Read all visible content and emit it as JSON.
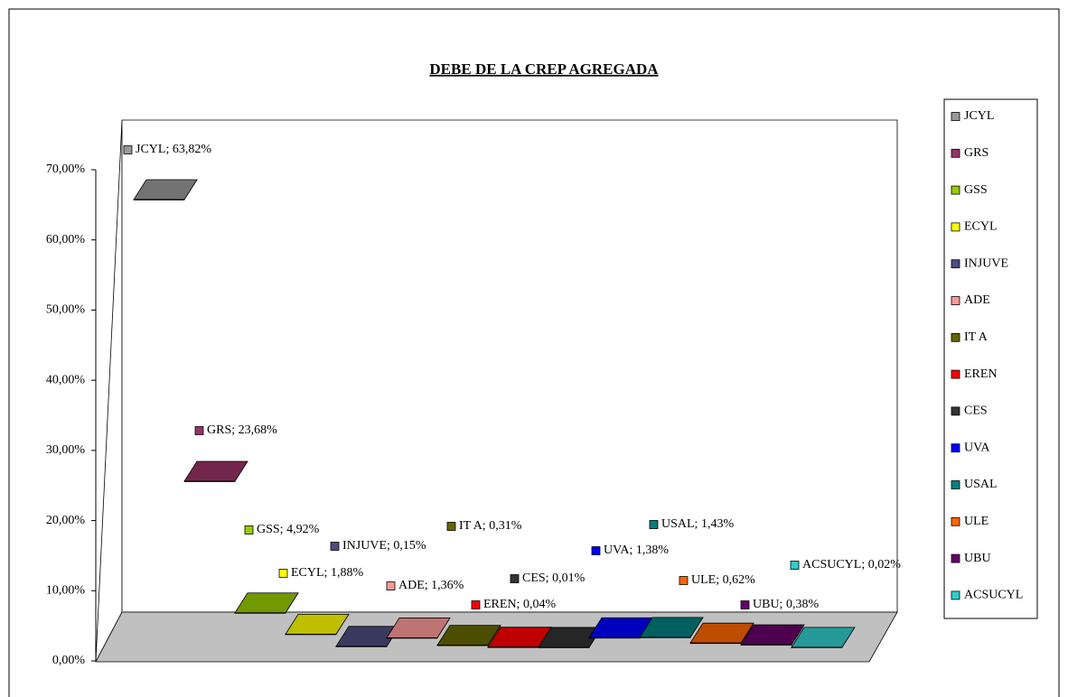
{
  "chart_data": {
    "type": "bar3d",
    "title": "DEBE DE LA CREP AGREGADA",
    "categories": [
      "JCYL",
      "GRS",
      "GSS",
      "ECYL",
      "INJUVE",
      "ADE",
      "IT A",
      "EREN",
      "CES",
      "UVA",
      "USAL",
      "ULE",
      "UBU",
      "ACSUCYL"
    ],
    "values": [
      63.82,
      23.68,
      4.92,
      1.88,
      0.15,
      1.36,
      0.31,
      0.04,
      0.01,
      1.38,
      1.43,
      0.62,
      0.38,
      0.02
    ],
    "value_labels": [
      "JCYL; 63,82%",
      "GRS; 23,68%",
      "GSS; 4,92%",
      "ECYL; 1,88%",
      "INJUVE; 0,15%",
      "ADE; 1,36%",
      "IT A; 0,31%",
      "EREN; 0,04%",
      "CES; 0,01%",
      "UVA; 1,38%",
      "USAL; 1,43%",
      "ULE; 0,62%",
      "UBU; 0,38%",
      "ACSUCYL; 0,02%"
    ],
    "colors": [
      "#999999",
      "#993366",
      "#99cc00",
      "#ffff00",
      "#4d4d80",
      "#ff9999",
      "#666600",
      "#ff0000",
      "#333333",
      "#0000ff",
      "#008080",
      "#ff6600",
      "#660066",
      "#33cccc"
    ],
    "ylim": [
      0,
      70
    ],
    "yticks": [
      {
        "value": 0,
        "label": "0,00%"
      },
      {
        "value": 10,
        "label": "10,00%"
      },
      {
        "value": 20,
        "label": "20,00%"
      },
      {
        "value": 30,
        "label": "30,00%"
      },
      {
        "value": 40,
        "label": "40,00%"
      },
      {
        "value": 50,
        "label": "50,00%"
      },
      {
        "value": 60,
        "label": "60,00%"
      },
      {
        "value": 70,
        "label": "70,00%"
      }
    ],
    "legend": "right"
  }
}
